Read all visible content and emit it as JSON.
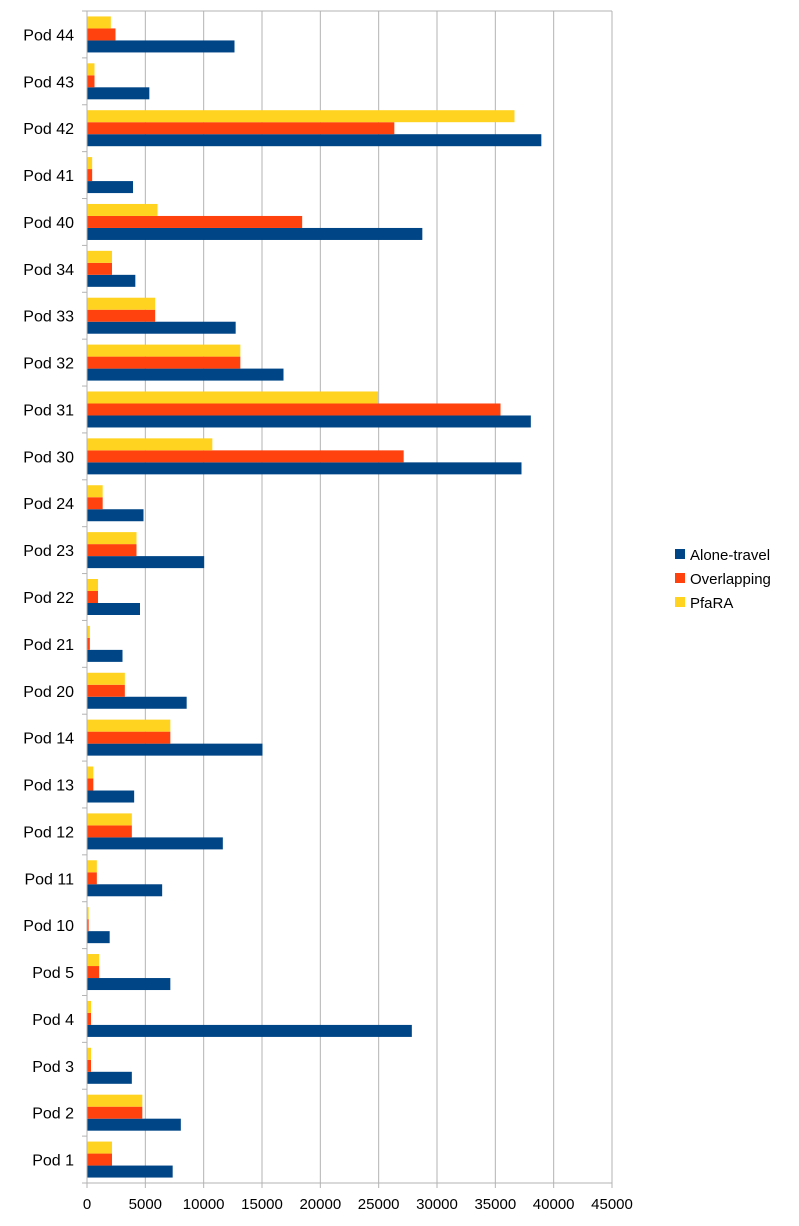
{
  "chart_data": {
    "type": "bar",
    "orientation": "horizontal",
    "title": "",
    "xlabel": "",
    "ylabel": "",
    "xlim": [
      0,
      45000
    ],
    "x_ticks": [
      0,
      5000,
      10000,
      15000,
      20000,
      25000,
      30000,
      35000,
      40000,
      45000
    ],
    "grid": true,
    "legend_position": "right",
    "categories": [
      "Pod 1",
      "Pod 2",
      "Pod 3",
      "Pod 4",
      "Pod 5",
      "Pod 10",
      "Pod 11",
      "Pod 12",
      "Pod 13",
      "Pod 14",
      "Pod 20",
      "Pod 21",
      "Pod 22",
      "Pod 23",
      "Pod 24",
      "Pod 30",
      "Pod 31",
      "Pod 32",
      "Pod 33",
      "Pod 34",
      "Pod 40",
      "Pod 41",
      "Pod 42",
      "Pod 43",
      "Pod 44"
    ],
    "series": [
      {
        "name": "Alone-travel",
        "color": "#004586",
        "values": [
          7300,
          8000,
          3800,
          27800,
          7100,
          1900,
          6400,
          11600,
          4000,
          15000,
          8500,
          3000,
          4500,
          10000,
          4800,
          37200,
          38000,
          16800,
          12700,
          4100,
          28700,
          3900,
          38900,
          5300,
          12600
        ]
      },
      {
        "name": "Overlapping",
        "color": "#ff420e",
        "values": [
          2100,
          4700,
          300,
          300,
          1000,
          100,
          800,
          3800,
          500,
          7100,
          3200,
          200,
          900,
          4200,
          1300,
          27100,
          35400,
          13100,
          5800,
          2100,
          18400,
          400,
          26300,
          600,
          2400
        ]
      },
      {
        "name": "PfaRA",
        "color": "#ffd320",
        "values": [
          2100,
          4700,
          300,
          300,
          1000,
          100,
          800,
          3800,
          500,
          7100,
          3200,
          200,
          900,
          4200,
          1300,
          10700,
          24900,
          13100,
          5800,
          2100,
          6000,
          400,
          36600,
          600,
          2000
        ]
      }
    ]
  }
}
